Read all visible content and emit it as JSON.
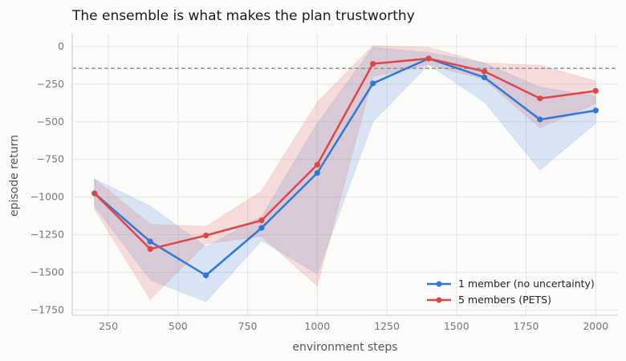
{
  "chart_data": {
    "type": "line",
    "title": "The ensemble is what makes the plan trustworthy",
    "xlabel": "environment steps",
    "ylabel": "episode return",
    "xlim": [
      120,
      2080
    ],
    "ylim": [
      -1785,
      85
    ],
    "xticks": [
      250,
      500,
      750,
      1000,
      1250,
      1500,
      1750,
      2000
    ],
    "xtick_labels": [
      "250",
      "500",
      "750",
      "1000",
      "1250",
      "1500",
      "1750",
      "2000"
    ],
    "yticks": [
      0,
      -250,
      -500,
      -750,
      -1000,
      -1250,
      -1500,
      -1750
    ],
    "ytick_labels": [
      "0",
      "−250",
      "−500",
      "−750",
      "−1000",
      "−1250",
      "−1500",
      "−1750"
    ],
    "grid": true,
    "reference_line": {
      "y": -145,
      "style": "dashed",
      "color": "#8a8a8a"
    },
    "legend_position": "bottom-right",
    "x": [
      200,
      400,
      600,
      800,
      1000,
      1200,
      1400,
      1600,
      1800,
      2000
    ],
    "series": [
      {
        "name": "1 member (no uncertainty)",
        "color": "#2f78d4",
        "values": [
          -975,
          -1295,
          -1520,
          -1205,
          -840,
          -245,
          -80,
          -205,
          -485,
          -425
        ],
        "lower": [
          -1060,
          -1550,
          -1695,
          -1290,
          -1510,
          -500,
          -120,
          -370,
          -820,
          -510
        ],
        "upper": [
          -880,
          -1060,
          -1330,
          -1130,
          -510,
          -5,
          -40,
          -110,
          -270,
          -330
        ]
      },
      {
        "name": "5 members (PETS)",
        "color": "#dd4646",
        "values": [
          -975,
          -1345,
          -1255,
          -1155,
          -785,
          -115,
          -80,
          -165,
          -345,
          -295
        ],
        "lower": [
          -1080,
          -1680,
          -1310,
          -1260,
          -1590,
          -200,
          -120,
          -220,
          -540,
          -380
        ],
        "upper": [
          -880,
          -1180,
          -1195,
          -960,
          -370,
          5,
          -5,
          -110,
          -125,
          -230
        ]
      }
    ]
  }
}
